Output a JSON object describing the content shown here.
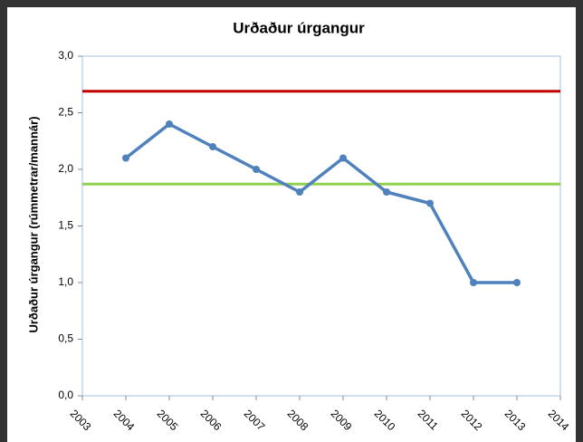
{
  "chart_data": {
    "type": "line",
    "title": "Urðaður úrgangur",
    "y_label": "Urðaður úrgangur (rúmmetrar/mannár)",
    "x": [
      2004,
      2005,
      2006,
      2007,
      2008,
      2009,
      2010,
      2011,
      2012,
      2013
    ],
    "series": [
      {
        "name": "Urðaður úrgangur",
        "color": "#4f81bd",
        "values": [
          2.1,
          2.4,
          2.2,
          2.0,
          1.8,
          2.1,
          1.8,
          1.7,
          1.0,
          1.0
        ]
      }
    ],
    "reference_lines": [
      {
        "value": 2.69,
        "color": "#c00000"
      },
      {
        "value": 1.87,
        "color": "#92d050"
      }
    ],
    "xlim": [
      2003,
      2014
    ],
    "xticks": [
      2003,
      2004,
      2005,
      2006,
      2007,
      2008,
      2009,
      2010,
      2011,
      2012,
      2013,
      2014
    ],
    "ylim": [
      0,
      3
    ],
    "yticks": [
      {
        "value": 0,
        "label": "0,0"
      },
      {
        "value": 0.5,
        "label": "0,5"
      },
      {
        "value": 1,
        "label": "1,0"
      },
      {
        "value": 1.5,
        "label": "1,5"
      },
      {
        "value": 2,
        "label": "2,0"
      },
      {
        "value": 2.5,
        "label": "2,5"
      },
      {
        "value": 3,
        "label": "3,0"
      }
    ],
    "grid": false
  }
}
